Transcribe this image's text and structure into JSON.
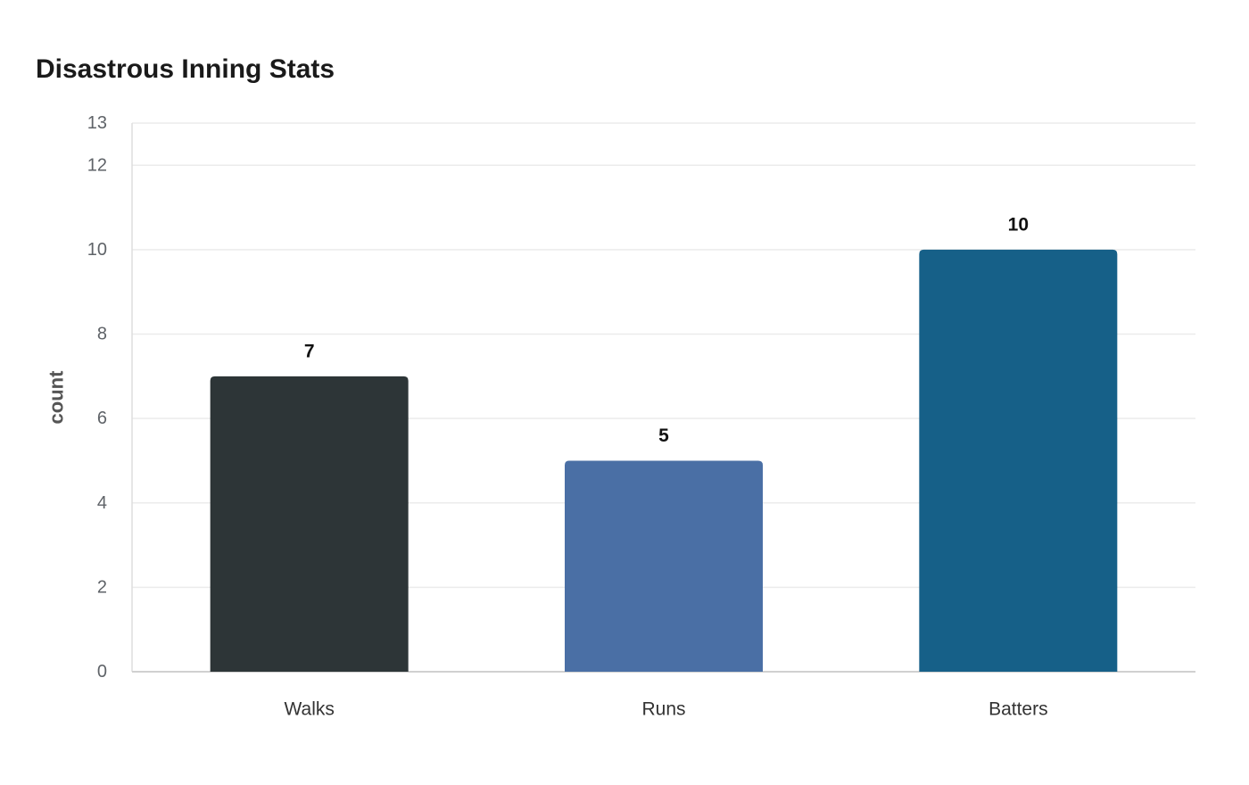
{
  "chart_data": {
    "type": "bar",
    "title": "Disastrous Inning Stats",
    "xlabel": "",
    "ylabel": "count",
    "categories": [
      "Walks",
      "Runs",
      "Batters"
    ],
    "values": [
      7,
      5,
      10
    ],
    "colors": [
      "#2d3537",
      "#4a6fa5",
      "#166088"
    ],
    "ylim": [
      0,
      13
    ],
    "yticks": [
      0,
      2,
      4,
      6,
      8,
      10,
      12,
      13
    ],
    "grid": true,
    "legend": "none"
  }
}
